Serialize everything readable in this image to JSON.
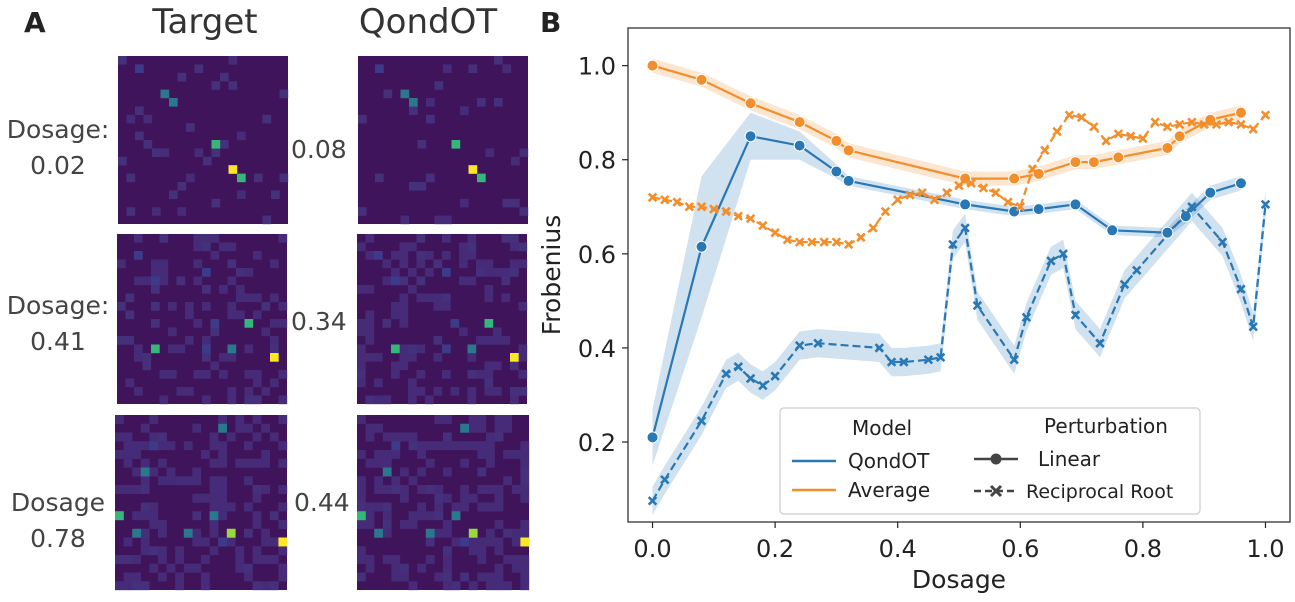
{
  "panels": {
    "a": "A",
    "b": "B"
  },
  "heatmaps": {
    "col_titles": [
      "Target",
      "QondOT"
    ],
    "rows": [
      {
        "left_label": [
          "Dosage:",
          "0.02"
        ],
        "mid_label": "0.08"
      },
      {
        "left_label": [
          "Dosage:",
          "0.41"
        ],
        "mid_label": "0.34"
      },
      {
        "left_label": [
          "Dosage",
          "0.78"
        ],
        "mid_label": "0.44"
      }
    ],
    "colors": {
      "bg": "#40145a",
      "dim": "#3b3b8a",
      "teal": "#2a788e",
      "green": "#35b779",
      "lime": "#9ad93c",
      "yellow": "#fde725"
    }
  },
  "chart_data": {
    "type": "line",
    "xlabel": "Dosage",
    "ylabel": "Frobenius",
    "xlim": [
      -0.04,
      1.04
    ],
    "ylim": [
      0.03,
      1.08
    ],
    "xticks": [
      "0.0",
      "0.2",
      "0.4",
      "0.6",
      "0.8",
      "1.0"
    ],
    "xtick_values": [
      0.0,
      0.2,
      0.4,
      0.6,
      0.8,
      1.0
    ],
    "yticks": [
      "0.2",
      "0.4",
      "0.6",
      "0.8",
      "1.0"
    ],
    "ytick_values": [
      0.2,
      0.4,
      0.6,
      0.8,
      1.0
    ],
    "grid": false,
    "legend": {
      "placement": "lower-right",
      "model_title": "Model",
      "perturbation_title": "Perturbation",
      "models": [
        "QondOT",
        "Average"
      ],
      "perturbations": [
        "Linear",
        "Reciprocal Root"
      ]
    },
    "series": [
      {
        "model": "Average",
        "perturbation": "Linear",
        "color": "#f28e2b",
        "marker": "circle",
        "dash": false,
        "x": [
          0.0,
          0.08,
          0.16,
          0.24,
          0.3,
          0.32,
          0.51,
          0.59,
          0.63,
          0.69,
          0.72,
          0.76,
          0.84,
          0.86,
          0.91,
          0.96
        ],
        "y": [
          1.0,
          0.97,
          0.92,
          0.88,
          0.84,
          0.82,
          0.76,
          0.76,
          0.77,
          0.795,
          0.795,
          0.805,
          0.825,
          0.85,
          0.885,
          0.9
        ],
        "band": 0.015
      },
      {
        "model": "QondOT",
        "perturbation": "Linear",
        "color": "#2878b5",
        "marker": "circle",
        "dash": false,
        "x": [
          0.0,
          0.08,
          0.16,
          0.24,
          0.3,
          0.32,
          0.51,
          0.59,
          0.63,
          0.69,
          0.75,
          0.84,
          0.87,
          0.91,
          0.96
        ],
        "y": [
          0.21,
          0.615,
          0.85,
          0.83,
          0.775,
          0.755,
          0.705,
          0.69,
          0.695,
          0.705,
          0.65,
          0.645,
          0.68,
          0.73,
          0.75
        ],
        "band": [
          0.06,
          0.15,
          0.05,
          0.03,
          0.015,
          0.01,
          0.01,
          0.01,
          0.01,
          0.01,
          0.01,
          0.01,
          0.015,
          0.015,
          0.015
        ]
      },
      {
        "model": "Average",
        "perturbation": "Reciprocal Root",
        "color": "#f28e2b",
        "marker": "x",
        "dash": true,
        "x": [
          0.0,
          0.02,
          0.04,
          0.06,
          0.08,
          0.1,
          0.12,
          0.14,
          0.16,
          0.18,
          0.2,
          0.22,
          0.24,
          0.26,
          0.28,
          0.3,
          0.32,
          0.34,
          0.36,
          0.38,
          0.4,
          0.42,
          0.44,
          0.46,
          0.48,
          0.5,
          0.52,
          0.54,
          0.56,
          0.58,
          0.6,
          0.62,
          0.64,
          0.66,
          0.68,
          0.7,
          0.72,
          0.74,
          0.76,
          0.78,
          0.8,
          0.82,
          0.84,
          0.86,
          0.88,
          0.9,
          0.92,
          0.94,
          0.96,
          0.98,
          1.0
        ],
        "y": [
          0.72,
          0.715,
          0.71,
          0.7,
          0.7,
          0.695,
          0.69,
          0.68,
          0.675,
          0.66,
          0.645,
          0.63,
          0.625,
          0.625,
          0.625,
          0.625,
          0.62,
          0.635,
          0.655,
          0.69,
          0.715,
          0.725,
          0.73,
          0.715,
          0.73,
          0.745,
          0.75,
          0.74,
          0.73,
          0.71,
          0.7,
          0.78,
          0.82,
          0.86,
          0.895,
          0.89,
          0.87,
          0.84,
          0.855,
          0.85,
          0.845,
          0.88,
          0.87,
          0.875,
          0.88,
          0.875,
          0.875,
          0.88,
          0.875,
          0.865,
          0.895
        ]
      },
      {
        "model": "QondOT",
        "perturbation": "Reciprocal Root",
        "color": "#2878b5",
        "marker": "x",
        "dash": true,
        "x": [
          0.0,
          0.02,
          0.08,
          0.12,
          0.14,
          0.16,
          0.18,
          0.2,
          0.24,
          0.27,
          0.37,
          0.39,
          0.41,
          0.45,
          0.47,
          0.49,
          0.51,
          0.53,
          0.59,
          0.61,
          0.65,
          0.67,
          0.69,
          0.73,
          0.77,
          0.79,
          0.87,
          0.88,
          0.93,
          0.96,
          0.98,
          1.0
        ],
        "y": [
          0.075,
          0.12,
          0.245,
          0.345,
          0.36,
          0.335,
          0.32,
          0.34,
          0.405,
          0.41,
          0.4,
          0.37,
          0.37,
          0.375,
          0.38,
          0.62,
          0.655,
          0.49,
          0.375,
          0.465,
          0.585,
          0.6,
          0.47,
          0.41,
          0.535,
          0.565,
          0.685,
          0.7,
          0.625,
          0.525,
          0.445,
          0.705
        ],
        "band": 0.03
      }
    ]
  }
}
